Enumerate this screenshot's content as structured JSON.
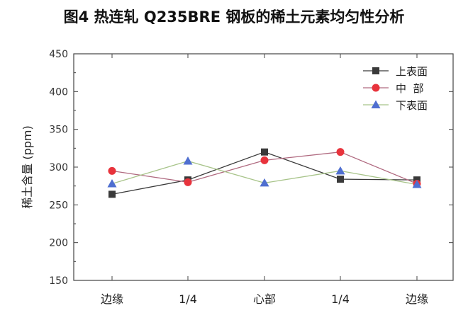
{
  "chart_data": {
    "type": "line",
    "title": "图4 热连轧 Q235BRE 钢板的稀土元素均匀性分析",
    "xlabel": "",
    "ylabel": "稀土含量 (ppm)",
    "categories": [
      "边缘",
      "1/4",
      "心部",
      "1/4",
      "边缘"
    ],
    "ylim": [
      150,
      450
    ],
    "yticks": [
      150,
      200,
      250,
      300,
      350,
      400,
      450
    ],
    "legend_position": "top-right",
    "grid": false,
    "series": [
      {
        "name": "上表面",
        "values": [
          264,
          283,
          320,
          284,
          283
        ],
        "color": "#3a3a3a",
        "marker": "square"
      },
      {
        "name": "中  部",
        "values": [
          295,
          280,
          309,
          320,
          278
        ],
        "color": "#e8333c",
        "marker": "circle"
      },
      {
        "name": "下表面",
        "values": [
          278,
          308,
          279,
          295,
          277
        ],
        "color": "#4f6fd0",
        "marker": "triangle"
      }
    ],
    "line_colors": [
      "#3a3a3a",
      "#b06a80",
      "#a8c48a"
    ]
  }
}
